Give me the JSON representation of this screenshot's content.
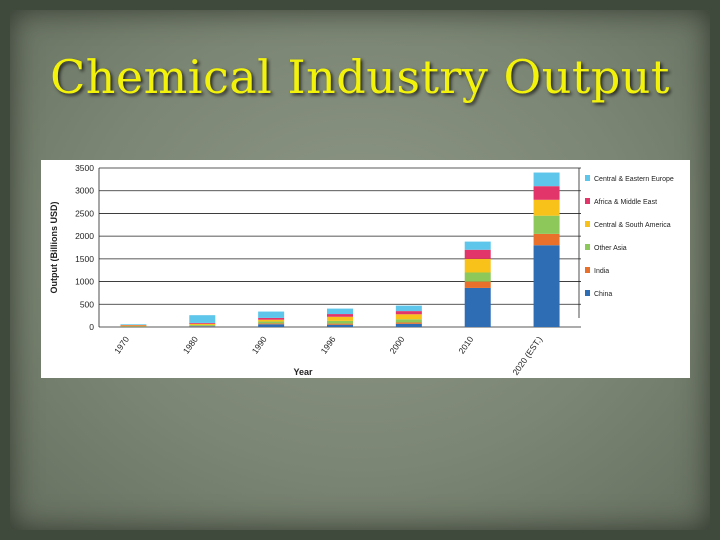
{
  "slide": {
    "title": "Chemical Industry Output"
  },
  "chart_data": {
    "type": "bar",
    "stacked": true,
    "categories": [
      "1970",
      "1980",
      "1990",
      "1996",
      "2000",
      "2010",
      "2020 (EST.)"
    ],
    "ylabel": "Output (Billions USD)",
    "xlabel": "Year",
    "ylim": [
      0,
      3500
    ],
    "yticks": [
      0,
      500,
      1000,
      1500,
      2000,
      2500,
      3000,
      3500
    ],
    "grid": true,
    "legend_position": "right",
    "series": [
      {
        "name": "China",
        "color": "#2e6db4",
        "values": [
          5,
          15,
          60,
          50,
          70,
          860,
          1800
        ]
      },
      {
        "name": "India",
        "color": "#e8702a",
        "values": [
          5,
          10,
          20,
          25,
          30,
          140,
          250
        ]
      },
      {
        "name": "Other Asia",
        "color": "#8cc85a",
        "values": [
          10,
          20,
          40,
          60,
          70,
          200,
          400
        ]
      },
      {
        "name": "Central & South America",
        "color": "#f8c21a",
        "values": [
          15,
          25,
          40,
          90,
          110,
          300,
          350
        ]
      },
      {
        "name": "Africa & Middle East",
        "color": "#e2356a",
        "values": [
          10,
          20,
          40,
          60,
          70,
          200,
          300
        ]
      },
      {
        "name": "Central & Eastern Europe",
        "color": "#5ec6ea",
        "values": [
          15,
          170,
          140,
          120,
          120,
          180,
          300
        ]
      }
    ]
  }
}
